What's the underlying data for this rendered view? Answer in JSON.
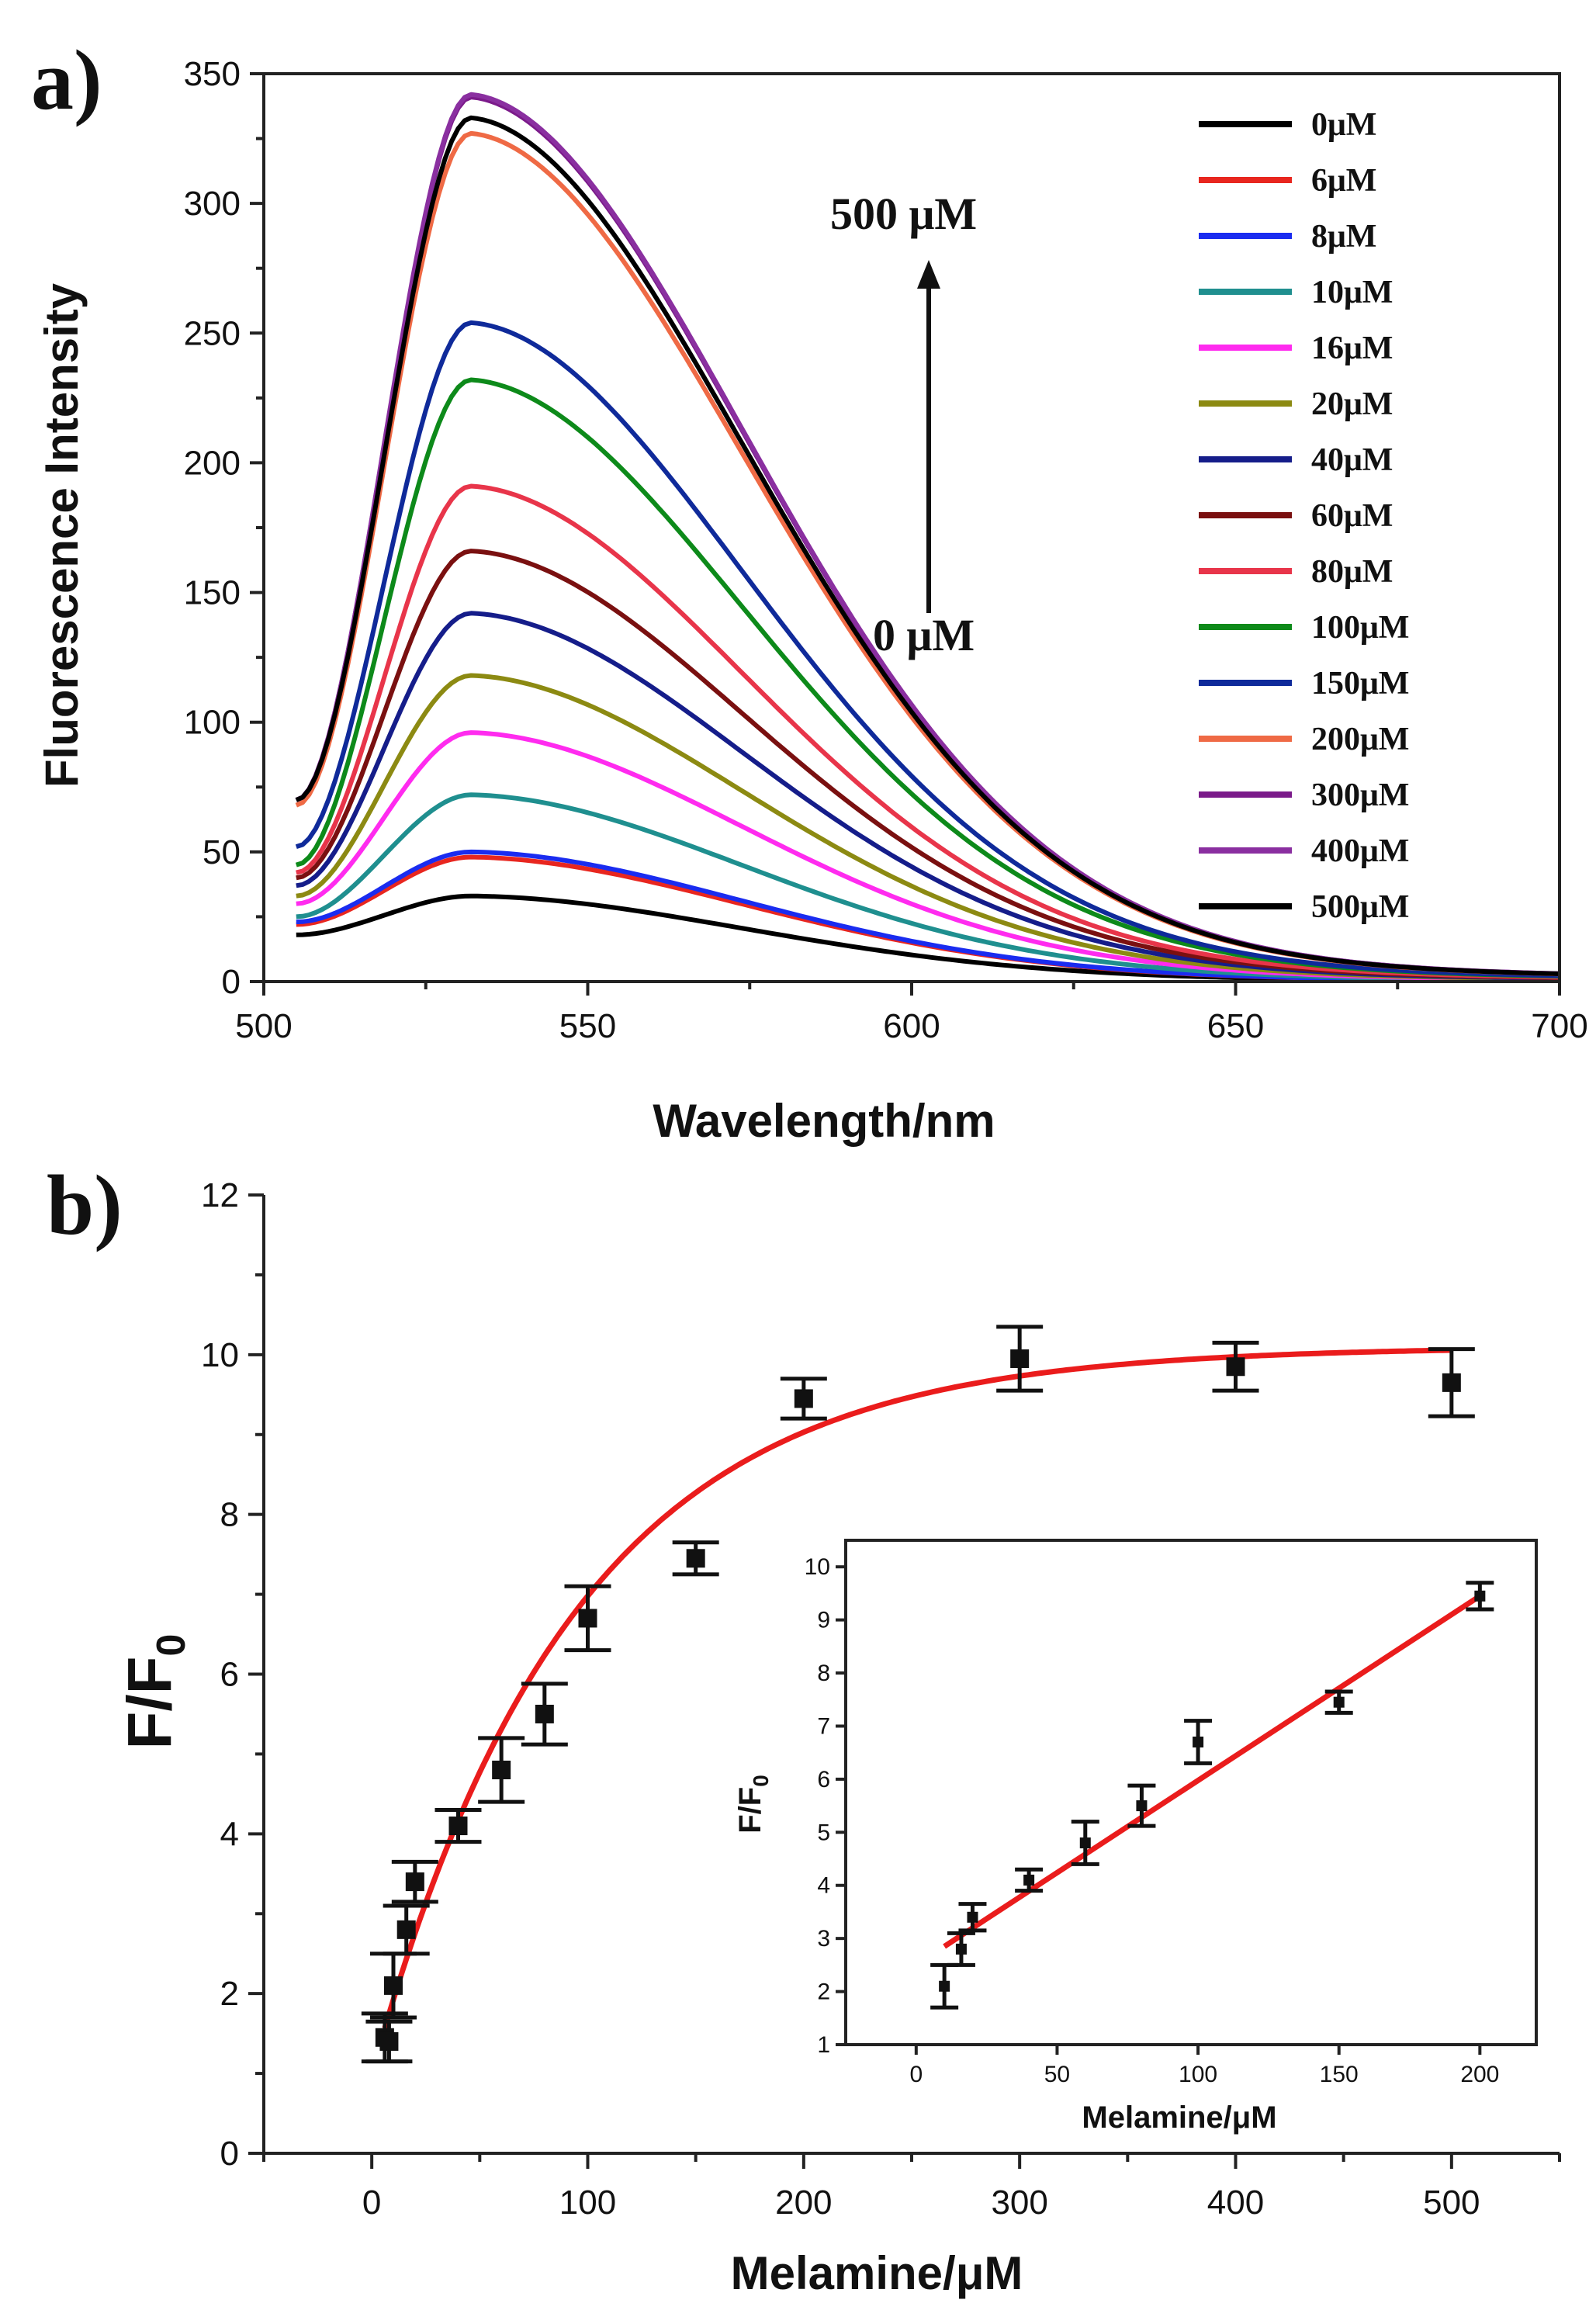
{
  "chart_data": [
    {
      "type": "line",
      "panel_label": "a)",
      "title": "",
      "xlabel": "Wavelength/nm",
      "ylabel": "Fluorescence Intensity",
      "xlim": [
        500,
        700
      ],
      "ylim": [
        0,
        350
      ],
      "xticks": [
        500,
        550,
        600,
        650,
        700
      ],
      "yticks": [
        0,
        50,
        100,
        150,
        200,
        250,
        300,
        350
      ],
      "grid": false,
      "legend_position": "top-right",
      "annotations": {
        "top": "500 μM",
        "bottom": "0 μM"
      },
      "peak_wavelength": 532,
      "series": [
        {
          "name": "0μM",
          "color": "#000000",
          "start": 18,
          "peak": 33
        },
        {
          "name": "6μM",
          "color": "#e8261f",
          "start": 22,
          "peak": 48
        },
        {
          "name": "8μM",
          "color": "#1a2cf0",
          "start": 23,
          "peak": 50
        },
        {
          "name": "10μM",
          "color": "#1f8f8f",
          "start": 25,
          "peak": 72
        },
        {
          "name": "16μM",
          "color": "#ff2bef",
          "start": 30,
          "peak": 96
        },
        {
          "name": "20μM",
          "color": "#8c8a12",
          "start": 33,
          "peak": 118
        },
        {
          "name": "40μM",
          "color": "#151d8a",
          "start": 37,
          "peak": 142
        },
        {
          "name": "60μM",
          "color": "#7a1010",
          "start": 40,
          "peak": 166
        },
        {
          "name": "80μM",
          "color": "#e8354a",
          "start": 42,
          "peak": 191
        },
        {
          "name": "100μM",
          "color": "#0d8a1a",
          "start": 45,
          "peak": 232
        },
        {
          "name": "150μM",
          "color": "#0f2a9a",
          "start": 52,
          "peak": 254
        },
        {
          "name": "200μM",
          "color": "#ef6a45",
          "start": 68,
          "peak": 327
        },
        {
          "name": "300μM",
          "color": "#7b1a8a",
          "start": 70,
          "peak": 341
        },
        {
          "name": "400μM",
          "color": "#8a2fa0",
          "start": 70,
          "peak": 342
        },
        {
          "name": "500μM",
          "color": "#000000",
          "start": 70,
          "peak": 333
        }
      ]
    },
    {
      "type": "scatter",
      "panel_label": "b)",
      "title": "",
      "xlabel": "Melamine/μM",
      "ylabel": "F/F",
      "ylabel_subscript": "0",
      "xlim": [
        -50,
        550
      ],
      "ylim": [
        0,
        12
      ],
      "xticks": [
        0,
        100,
        200,
        300,
        400,
        500
      ],
      "yticks": [
        0,
        2,
        4,
        6,
        8,
        10,
        12
      ],
      "grid": false,
      "points": {
        "x": [
          6,
          8,
          10,
          16,
          20,
          40,
          60,
          80,
          100,
          150,
          200,
          300,
          400,
          500
        ],
        "y": [
          1.45,
          1.4,
          2.1,
          2.8,
          3.4,
          4.1,
          4.8,
          5.5,
          6.7,
          7.45,
          9.45,
          9.95,
          9.85,
          9.65
        ],
        "err": [
          0.3,
          0.25,
          0.4,
          0.3,
          0.25,
          0.2,
          0.4,
          0.38,
          0.4,
          0.2,
          0.25,
          0.4,
          0.3,
          0.42
        ]
      },
      "fit": {
        "color": "#ea1c1c",
        "model": "exponential",
        "y0": 1.0,
        "ymax": 10.1,
        "k": 0.0107
      },
      "inset": {
        "type": "scatter",
        "xlabel": "Melamine/μM",
        "ylabel": "F/F",
        "ylabel_subscript": "0",
        "xlim": [
          -25,
          220
        ],
        "ylim": [
          1,
          10.5
        ],
        "xticks": [
          0,
          50,
          100,
          150,
          200
        ],
        "yticks": [
          1,
          2,
          3,
          4,
          5,
          6,
          7,
          8,
          9,
          10
        ],
        "points": {
          "x": [
            10,
            16,
            20,
            40,
            60,
            80,
            100,
            150,
            200
          ],
          "y": [
            2.1,
            2.8,
            3.4,
            4.1,
            4.8,
            5.5,
            6.7,
            7.45,
            9.45
          ],
          "err": [
            0.4,
            0.3,
            0.25,
            0.2,
            0.4,
            0.38,
            0.4,
            0.2,
            0.25
          ]
        },
        "fit": {
          "color": "#ea1c1c",
          "model": "linear",
          "x": [
            10,
            200
          ],
          "y": [
            2.85,
            9.45
          ]
        }
      }
    }
  ]
}
